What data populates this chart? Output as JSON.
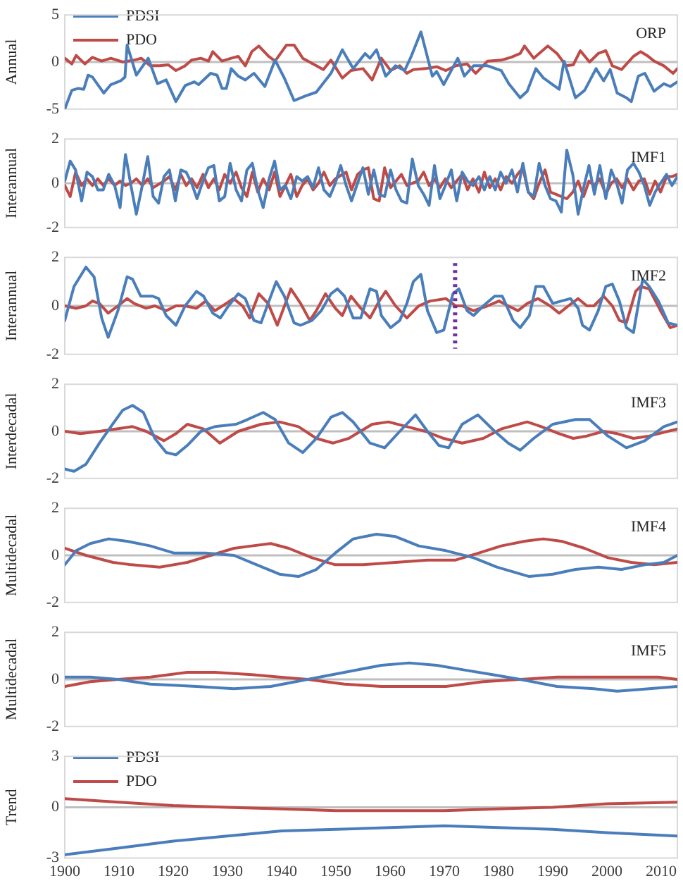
{
  "chart_data": [
    {
      "type": "line",
      "ylabel": "Annual",
      "annotations": [
        "ORP"
      ],
      "xlim": [
        1900,
        2013
      ],
      "xticks": [
        1900,
        1910,
        1920,
        1930,
        1940,
        1950,
        1960,
        1970,
        1980,
        1990,
        2000,
        2010
      ],
      "ylim": [
        -5,
        5
      ],
      "yticks": [
        -5,
        0,
        5
      ],
      "tick_labels": "y",
      "legend": "top left",
      "ref_lines": [
        {
          "axis": "y",
          "value": 0,
          "color": "#bfbfbf"
        }
      ],
      "series": [
        {
          "name": "PDSI",
          "color": "#4a7ebb",
          "x": [
            1900,
            1901.3,
            1902.5,
            1903.5,
            1904.3,
            1905.1,
            1907.2,
            1908.5,
            1910.3,
            1911.1,
            1911.5,
            1913.2,
            1915.4,
            1917.1,
            1917.9,
            1918.7,
            1920.5,
            1922.2,
            1923.9,
            1924.7,
            1926.9,
            1928.1,
            1929,
            1929.8,
            1930.7,
            1932,
            1933.3,
            1934.9,
            1936.9,
            1938.8,
            1940.5,
            1942.3,
            1944.4,
            1946.4,
            1949.1,
            1951.2,
            1953.2,
            1955.4,
            1956.3,
            1957.5,
            1959.2,
            1961,
            1962.7,
            1963.9,
            1965.7,
            1967.8,
            1968.6,
            1969.9,
            1972.5,
            1973.7,
            1975.4,
            1978,
            1980.5,
            1981.9,
            1984,
            1985.3,
            1986.9,
            1988.3,
            1990,
            1991.2,
            1992.1,
            1994.2,
            1995.9,
            1998,
            1999.4,
            2000.6,
            2001.9,
            2003.6,
            2004.5,
            2005.8,
            2007,
            2008.7,
            2010.5,
            2011.7,
            2013
          ],
          "values": [
            -5,
            -3,
            -2.8,
            -2.9,
            -1.4,
            -1.6,
            -3.3,
            -2.4,
            -2,
            -1.6,
            1.8,
            -1.4,
            0.4,
            -2.3,
            -2.1,
            -1.9,
            -4.2,
            -2.5,
            -2.1,
            -2.4,
            -1.2,
            -1.4,
            -2.8,
            -2.8,
            -0.7,
            -1.5,
            -1.9,
            -1.2,
            -2.6,
            0.2,
            -1.7,
            -4.1,
            -3.6,
            -3.2,
            -1.2,
            1.3,
            -0.7,
            0.9,
            0.4,
            1.3,
            -1.5,
            -0.4,
            -0.9,
            0.6,
            3.2,
            -1.5,
            -1,
            -2.4,
            0.4,
            -1.5,
            -0.4,
            -0.4,
            -0.9,
            -2.3,
            -3.8,
            -3.1,
            -0.7,
            -1.7,
            -2.4,
            -2.9,
            0.1,
            -3.8,
            -3,
            -0.7,
            -2,
            -0.8,
            -3.3,
            -3.8,
            -4.2,
            -1.5,
            -1.2,
            -3.1,
            -2.3,
            -2.6,
            -2.1
          ]
        },
        {
          "name": "PDO",
          "color": "#be4b48",
          "x": [
            1900,
            1901.3,
            1902.1,
            1903.7,
            1905.1,
            1906.8,
            1908.5,
            1910.7,
            1912.8,
            1914.1,
            1915.8,
            1917.5,
            1919.1,
            1920.5,
            1922.2,
            1923.4,
            1925.1,
            1926.5,
            1927.3,
            1929,
            1930.7,
            1932,
            1933.3,
            1934.5,
            1935.8,
            1937.6,
            1938.8,
            1940.9,
            1942.3,
            1943.9,
            1946.4,
            1947.7,
            1949.1,
            1951.2,
            1952.8,
            1955,
            1956.7,
            1958.4,
            1960.1,
            1961.8,
            1963.1,
            1964.3,
            1966.5,
            1968.6,
            1970.3,
            1972.1,
            1974.2,
            1975.8,
            1978,
            1980.5,
            1982.3,
            1984,
            1984.8,
            1986.5,
            1989.1,
            1990.8,
            1992.5,
            1993.8,
            1995.1,
            1996.8,
            1998.4,
            1999.8,
            2001,
            2002.7,
            2004.9,
            2006.2,
            2007.4,
            2008.7,
            2010.5,
            2012.2,
            2013
          ],
          "values": [
            0.4,
            -0.2,
            0.7,
            -0.2,
            0.5,
            0.1,
            0.4,
            0,
            0.2,
            0.4,
            -0.4,
            -0.4,
            -0.3,
            -0.9,
            -0.4,
            0.2,
            0.4,
            0.1,
            1.1,
            0.1,
            0.4,
            0.6,
            -0.4,
            1.1,
            1.7,
            0.6,
            0.1,
            1.8,
            1.8,
            0.4,
            -0.4,
            -0.8,
            0.2,
            -1.7,
            -0.9,
            -0.7,
            -1.9,
            0.4,
            -0.9,
            -0.4,
            -1.2,
            -0.8,
            -0.7,
            -0.5,
            -0.9,
            -0.4,
            -0.2,
            -1.2,
            0.1,
            0.2,
            0.5,
            0.9,
            1.7,
            0.4,
            1.7,
            0.9,
            -0.4,
            -0.3,
            1.2,
            0,
            0.9,
            1.2,
            -0.4,
            -0.8,
            0.6,
            1.1,
            0.7,
            0.1,
            -0.4,
            -1.2,
            -0.7
          ]
        }
      ]
    },
    {
      "type": "line",
      "ylabel": "Interannual",
      "annotations": [
        "IMF1"
      ],
      "xlim": [
        1900,
        2013
      ],
      "xticks": [
        1900,
        1910,
        1920,
        1930,
        1940,
        1950,
        1960,
        1970,
        1980,
        1990,
        2000,
        2010
      ],
      "ylim": [
        -2,
        2
      ],
      "yticks": [
        -2,
        0,
        2
      ],
      "tick_labels": "y",
      "ref_lines": [
        {
          "axis": "y",
          "value": 0,
          "color": "#bfbfbf"
        }
      ],
      "x": [
        1900,
        1901,
        1902,
        1903.1,
        1904.1,
        1905.1,
        1906.1,
        1907.1,
        1908.1,
        1909.2,
        1910.2,
        1911.2,
        1912.2,
        1913.2,
        1914.3,
        1915.3,
        1916.3,
        1917.3,
        1918.3,
        1919.3,
        1920.4,
        1921.4,
        1922.4,
        1923.4,
        1924.4,
        1925.5,
        1926.5,
        1927.5,
        1928.5,
        1929.5,
        1930.5,
        1931.6,
        1932.6,
        1933.6,
        1934.6,
        1935.6,
        1936.6,
        1937.7,
        1938.7,
        1939.7,
        1940.7,
        1941.7,
        1942.8,
        1943.8,
        1944.8,
        1945.8,
        1946.8,
        1947.8,
        1948.9,
        1949.9,
        1950.9,
        1951.9,
        1952.9,
        1954,
        1955,
        1956,
        1957,
        1958,
        1959,
        1960.1,
        1961.1,
        1962.1,
        1963.1,
        1964.1,
        1965.2,
        1966.2,
        1967.2,
        1968.2,
        1969.2,
        1970.2,
        1971.3,
        1972.3,
        1973.3,
        1974.3,
        1975.3,
        1976.4,
        1977.4,
        1978.4,
        1979.4,
        1980.4,
        1981.4,
        1982.5,
        1983.5,
        1984.5,
        1985.5,
        1986.5,
        1987.5,
        1988.6,
        1989.6,
        1990.6,
        1991.6,
        1992.6,
        1993.7,
        1994.7,
        1995.7,
        1996.7,
        1997.7,
        1998.7,
        1999.8,
        2000.8,
        2001.8,
        2002.8,
        2003.8,
        2004.9,
        2005.9,
        2006.9,
        2007.9,
        2008.9,
        2009.9,
        2011,
        2012,
        2013
      ],
      "series": [
        {
          "color": "#4a7ebb",
          "values": [
            0.1,
            1,
            0.6,
            -0.8,
            0.5,
            0.3,
            -0.3,
            -0.3,
            0.4,
            -0.1,
            -1.1,
            1.3,
            -0.1,
            -1.4,
            -0.1,
            1.2,
            -0.6,
            -0.9,
            0.3,
            0.6,
            -0.8,
            0.6,
            0.5,
            0,
            -0.7,
            0.1,
            0.7,
            0.8,
            -0.8,
            -0.6,
            0.9,
            -0.3,
            -0.8,
            0.6,
            0.9,
            -0.3,
            -1.1,
            0.2,
            1,
            -0.3,
            -0.1,
            -0.7,
            0.3,
            0.1,
            0.3,
            -0.2,
            0.7,
            -0.3,
            -0.6,
            0,
            0.8,
            -0.1,
            -0.8,
            0,
            0.7,
            -0.5,
            0.6,
            -0.5,
            -0.6,
            0.6,
            -0.3,
            -0.8,
            -0.9,
            1.1,
            -0.1,
            -0.5,
            -1,
            0.8,
            -0.7,
            -0.1,
            0.6,
            -0.8,
            0.5,
            0.1,
            -0.1,
            0.3,
            -0.3,
            0.3,
            -0.3,
            0.5,
            0,
            0.6,
            -0.4,
            0.9,
            -0.4,
            -0.6,
            0.9,
            -0.1,
            -0.7,
            -0.8,
            -1.3,
            1.5,
            0.4,
            -1.4,
            -0.2,
            0.8,
            -0.5,
            0.8,
            -0.7,
            0.6,
            0,
            -0.9,
            0.6,
            0.9,
            0.5,
            -0.1,
            -1,
            -0.4,
            0,
            0.4,
            -0.1,
            0.3
          ]
        },
        {
          "color": "#be4b48",
          "x": [
            1900,
            1901,
            1902,
            1903.1,
            1904.1,
            1905.1,
            1906.1,
            1907.1,
            1908.1,
            1909.2,
            1910.2,
            1911.2,
            1912.2,
            1913.2,
            1914.3,
            1915.3,
            1916.3,
            1918.3,
            1919.3,
            1920.4,
            1921.4,
            1922.4,
            1923.4,
            1924.4,
            1925.5,
            1926.5,
            1927.5,
            1928.5,
            1929.5,
            1930.5,
            1931.6,
            1932.6,
            1933.6,
            1934.6,
            1935.6,
            1936.6,
            1937.7,
            1938.7,
            1939.7,
            1941.7,
            1942.8,
            1943.8,
            1944.8,
            1945.8,
            1946.8,
            1947.8,
            1948.9,
            1949.9,
            1951.9,
            1952.9,
            1954,
            1955,
            1956,
            1957,
            1958,
            1959,
            1960.1,
            1961.1,
            1962.1,
            1963.1,
            1964.1,
            1965.2,
            1966.2,
            1967.2,
            1968.2,
            1969.2,
            1970.2,
            1971.3,
            1972.3,
            1973.3,
            1974.3,
            1975.3,
            1976.4,
            1977.4,
            1978.4,
            1979.4,
            1980.4,
            1981.4,
            1982.5,
            1983.5,
            1984.5,
            1985.5,
            1986.5,
            1987.5,
            1988.6,
            1989.6,
            1990.6,
            1991.6,
            1992.6,
            1993.7,
            1994.7,
            1995.7,
            1996.7,
            1997.7,
            1998.7,
            1999.8,
            2000.8,
            2001.8,
            2002.8,
            2003.8,
            2004.9,
            2005.9,
            2006.9,
            2007.9,
            2008.9,
            2009.9,
            2011,
            2012,
            2013
          ],
          "values": [
            -0.1,
            -0.6,
            0.5,
            -0.1,
            0.2,
            -0.1,
            0.2,
            -0.1,
            0.2,
            -0.1,
            0.1,
            -0.1,
            0,
            0.2,
            -0.1,
            0.2,
            -0.2,
            0.1,
            0.3,
            -0.3,
            0.4,
            -0.1,
            0.2,
            -0.2,
            0.4,
            -0.2,
            0.2,
            -0.3,
            0.4,
            0,
            0.5,
            -0.2,
            -0.6,
            0.5,
            -0.4,
            0.2,
            -0.3,
            0.5,
            -0.6,
            0.4,
            -0.6,
            -0.1,
            0.2,
            -0.3,
            0,
            0.5,
            -0.1,
            0.2,
            0.5,
            -0.3,
            0.4,
            0.6,
            0.7,
            -0.7,
            -0.8,
            0.7,
            -0.2,
            0.1,
            0.4,
            -0.1,
            0,
            0.1,
            0.5,
            -0.1,
            0.2,
            -0.2,
            0.2,
            -0.2,
            0.1,
            0.4,
            -0.3,
            0.2,
            -0.4,
            0.5,
            -0.2,
            0.2,
            -0.3,
            0.3,
            0,
            0.4,
            0.7,
            -0.4,
            -0.7,
            0,
            0.6,
            -0.4,
            -0.5,
            -0.6,
            -0.7,
            -0.4,
            0.1,
            -0.6,
            0.1,
            -0.1,
            0.2,
            -0.5,
            0,
            0.2,
            -0.2,
            0.2,
            -0.3,
            0.1,
            0.2,
            -0.5,
            0.1,
            -0.4,
            0.3,
            0.3,
            0.4
          ]
        }
      ]
    },
    {
      "type": "line",
      "ylabel": "Interannual",
      "annotations": [
        "IMF2"
      ],
      "xlim": [
        1900,
        2013
      ],
      "xticks": [
        1900,
        1910,
        1920,
        1930,
        1940,
        1950,
        1960,
        1970,
        1980,
        1990,
        2000,
        2010
      ],
      "ylim": [
        -2,
        2
      ],
      "yticks": [
        -2,
        0,
        2
      ],
      "tick_labels": "y",
      "ref_lines": [
        {
          "axis": "y",
          "value": 0,
          "color": "#bfbfbf"
        },
        {
          "axis": "x",
          "value": 1972,
          "color": "#7030a0",
          "line_style": "dotted"
        }
      ],
      "series": [
        {
          "color": "#4a7ebb",
          "x": [
            1900,
            1901.7,
            1903.9,
            1905.4,
            1906.8,
            1908,
            1909.8,
            1911.5,
            1912.5,
            1914,
            1916.2,
            1917.3,
            1918.7,
            1920.5,
            1922.2,
            1924.3,
            1925.6,
            1927.3,
            1928.7,
            1930.2,
            1932,
            1933.3,
            1934.9,
            1936.2,
            1937.5,
            1939,
            1940.5,
            1942.3,
            1943.5,
            1945.6,
            1947.3,
            1949.1,
            1950.3,
            1951.6,
            1953.2,
            1954.6,
            1956.3,
            1957.5,
            1958.4,
            1960.1,
            1961.8,
            1963.1,
            1964.3,
            1965.7,
            1966.9,
            1968.6,
            1969.9,
            1971.6,
            1972.7,
            1974.2,
            1975.4,
            1977.2,
            1979.3,
            1980.7,
            1982.7,
            1984,
            1985.7,
            1986.9,
            1988.3,
            1990,
            1991.6,
            1993.3,
            1994.7,
            1995.5,
            1996.8,
            1998.4,
            1999.8,
            2001,
            2002.3,
            2003.6,
            2004.9,
            2006.6,
            2007.8,
            2009.5,
            2011.3,
            2013
          ],
          "values": [
            -0.6,
            0.8,
            1.6,
            1.2,
            -0.5,
            -1.3,
            -0.2,
            1.2,
            1.1,
            0.4,
            0.4,
            0.3,
            -0.4,
            -0.8,
            0,
            0.6,
            0.4,
            -0.3,
            -0.5,
            0,
            0.5,
            0.3,
            -0.6,
            -0.7,
            0.1,
            1,
            0.4,
            -0.7,
            -0.8,
            -0.6,
            -0.2,
            0.5,
            0.7,
            0.4,
            -0.5,
            -0.5,
            0.7,
            0.6,
            -0.4,
            -0.9,
            -0.6,
            0.1,
            1,
            1.3,
            -0.2,
            -1.1,
            -1,
            0.5,
            0.7,
            -0.2,
            -0.4,
            0,
            0.4,
            0.4,
            -0.6,
            -0.9,
            -0.4,
            0.8,
            0.8,
            0.1,
            0.2,
            0.3,
            -0.1,
            -0.8,
            -1,
            -0.2,
            0.8,
            0.9,
            0.2,
            -0.9,
            -1.1,
            1.1,
            0.8,
            0.2,
            -0.7,
            -0.8
          ]
        },
        {
          "color": "#be4b48",
          "x": [
            1900,
            1902.1,
            1903.9,
            1905.1,
            1906.4,
            1908,
            1909.8,
            1911.5,
            1912.8,
            1915,
            1916.6,
            1918.7,
            1920.5,
            1922.2,
            1924.3,
            1926,
            1927.7,
            1929.8,
            1931.1,
            1932.8,
            1934.1,
            1935.8,
            1937.5,
            1939.2,
            1941.7,
            1943.5,
            1945.2,
            1946.4,
            1948.1,
            1949.9,
            1951.2,
            1952.8,
            1954.6,
            1956.3,
            1958,
            1959.2,
            1961,
            1963.1,
            1965.3,
            1967.4,
            1970.3,
            1972.1,
            1973.3,
            1975.4,
            1978,
            1980.1,
            1981.8,
            1983.6,
            1985.3,
            1987.3,
            1989.5,
            1991.2,
            1992.9,
            1994.7,
            1996.3,
            1997.6,
            1999.4,
            2001,
            2002.3,
            2003.6,
            2005.3,
            2006.2,
            2007.8,
            2009.9,
            2011.7,
            2013
          ],
          "values": [
            0,
            -0.1,
            0,
            0.2,
            0.1,
            -0.3,
            0,
            0.3,
            0.1,
            -0.1,
            0,
            -0.2,
            0,
            0,
            -0.1,
            0.2,
            -0.2,
            0.1,
            0.3,
            0,
            -0.5,
            0.5,
            0.1,
            -0.8,
            0.7,
            0.1,
            -0.6,
            -0.2,
            0.5,
            -0.1,
            -0.4,
            0.4,
            -0.1,
            -0.5,
            0.2,
            0.6,
            0,
            -0.5,
            0,
            0.2,
            0.3,
            0,
            0,
            -0.2,
            0,
            0.2,
            0,
            -0.2,
            0.1,
            0.3,
            0,
            -0.3,
            0,
            0.3,
            0,
            0,
            0.4,
            0,
            -0.6,
            -0.7,
            0.6,
            0.8,
            0.7,
            -0.2,
            -0.9,
            -0.8
          ]
        }
      ]
    },
    {
      "type": "line",
      "ylabel": "Interdecadal",
      "annotations": [
        "IMF3"
      ],
      "xlim": [
        1900,
        2013
      ],
      "xticks": [
        1900,
        1910,
        1920,
        1930,
        1940,
        1950,
        1960,
        1970,
        1980,
        1990,
        2000,
        2010
      ],
      "ylim": [
        -2,
        2
      ],
      "yticks": [
        -2,
        0,
        2
      ],
      "tick_labels": "y",
      "ref_lines": [
        {
          "axis": "y",
          "value": 0,
          "color": "#bfbfbf"
        }
      ],
      "series": [
        {
          "color": "#4a7ebb",
          "x": [
            1900,
            1901.7,
            1903.9,
            1906.4,
            1908.5,
            1910.7,
            1912.5,
            1914.5,
            1916.6,
            1918.7,
            1920.5,
            1922.6,
            1925.1,
            1927.7,
            1931.6,
            1933.7,
            1936.6,
            1938.8,
            1941.3,
            1943.9,
            1946.4,
            1949.1,
            1951.2,
            1953.2,
            1956.3,
            1959,
            1961.8,
            1964.7,
            1966.9,
            1969,
            1970.8,
            1973.3,
            1976.2,
            1979.3,
            1981.8,
            1984,
            1986.5,
            1990,
            1994.2,
            1996.8,
            2000.2,
            2003.6,
            2007,
            2010.5,
            2013
          ],
          "values": [
            -1.6,
            -1.7,
            -1.4,
            -0.5,
            0.2,
            0.9,
            1.1,
            0.8,
            -0.3,
            -0.9,
            -1,
            -0.6,
            0,
            0.2,
            0.3,
            0.5,
            0.8,
            0.5,
            -0.5,
            -0.9,
            -0.3,
            0.6,
            0.8,
            0.4,
            -0.5,
            -0.7,
            0,
            0.7,
            0,
            -0.6,
            -0.7,
            0.3,
            0.7,
            0,
            -0.5,
            -0.8,
            -0.3,
            0.3,
            0.5,
            0.5,
            -0.2,
            -0.7,
            -0.4,
            0.2,
            0.4
          ]
        },
        {
          "color": "#be4b48",
          "x": [
            1900,
            1902.9,
            1906.4,
            1909.4,
            1912.5,
            1915,
            1918.3,
            1920.5,
            1922.6,
            1925.6,
            1928.6,
            1932,
            1936.2,
            1939.6,
            1943.1,
            1946.4,
            1949.5,
            1952.4,
            1956.7,
            1959.7,
            1963.1,
            1966.5,
            1969.9,
            1973.3,
            1977.2,
            1980.5,
            1985.3,
            1987.9,
            1991.2,
            1993.8,
            1996.3,
            1999.4,
            2001.9,
            2004.9,
            2007.8,
            2013
          ],
          "values": [
            0,
            -0.1,
            0,
            0.1,
            0.2,
            0,
            -0.4,
            -0.1,
            0.3,
            0.1,
            -0.5,
            0,
            0.3,
            0.4,
            0.2,
            -0.3,
            -0.5,
            -0.3,
            0.3,
            0.4,
            0.2,
            0,
            -0.3,
            -0.5,
            -0.3,
            0.1,
            0.4,
            0.2,
            -0.1,
            -0.3,
            -0.2,
            0,
            -0.1,
            -0.3,
            -0.2,
            0.1
          ]
        }
      ]
    },
    {
      "type": "line",
      "ylabel": "Multidecadal",
      "annotations": [
        "IMF4"
      ],
      "xlim": [
        1900,
        2013
      ],
      "xticks": [
        1900,
        1910,
        1920,
        1930,
        1940,
        1950,
        1960,
        1970,
        1980,
        1990,
        2000,
        2010
      ],
      "ylim": [
        -2,
        2
      ],
      "yticks": [
        -2,
        0,
        2
      ],
      "tick_labels": "y",
      "ref_lines": [
        {
          "axis": "y",
          "value": 0,
          "color": "#bfbfbf"
        }
      ],
      "series": [
        {
          "color": "#4a7ebb",
          "x": [
            1900,
            1902.1,
            1904.7,
            1908.1,
            1911.5,
            1915.8,
            1920.1,
            1926,
            1931.2,
            1935.4,
            1939.6,
            1943.1,
            1946.4,
            1949.9,
            1953.2,
            1957.5,
            1961,
            1965.3,
            1970.3,
            1975.4,
            1979.7,
            1985.7,
            1990,
            1994.2,
            1998.4,
            2002.7,
            2007,
            2010.5,
            2013
          ],
          "values": [
            -0.4,
            0.2,
            0.5,
            0.7,
            0.6,
            0.4,
            0.1,
            0.1,
            0,
            -0.4,
            -0.8,
            -0.9,
            -0.6,
            0.1,
            0.7,
            0.9,
            0.8,
            0.4,
            0.2,
            -0.1,
            -0.5,
            -0.9,
            -0.8,
            -0.6,
            -0.5,
            -0.6,
            -0.4,
            -0.3,
            0
          ]
        },
        {
          "color": "#be4b48",
          "x": [
            1900,
            1903.9,
            1908.9,
            1912.3,
            1917.5,
            1922.6,
            1926.9,
            1931.2,
            1934.5,
            1938,
            1941.3,
            1945.6,
            1949.9,
            1955,
            1961,
            1966.9,
            1972.1,
            1976.4,
            1980.5,
            1984.8,
            1988.3,
            1991.6,
            1995.9,
            2000.2,
            2004.5,
            2008.7,
            2013
          ],
          "values": [
            0.3,
            0,
            -0.3,
            -0.4,
            -0.5,
            -0.3,
            0,
            0.3,
            0.4,
            0.5,
            0.3,
            -0.1,
            -0.4,
            -0.4,
            -0.3,
            -0.2,
            -0.2,
            0.1,
            0.4,
            0.6,
            0.7,
            0.6,
            0.3,
            -0.1,
            -0.3,
            -0.4,
            -0.3
          ]
        }
      ]
    },
    {
      "type": "line",
      "ylabel": "Multidecadal",
      "annotations": [
        "IMF5"
      ],
      "xlim": [
        1900,
        2013
      ],
      "xticks": [
        1900,
        1910,
        1920,
        1930,
        1940,
        1950,
        1960,
        1970,
        1980,
        1990,
        2000,
        2010
      ],
      "ylim": [
        -2,
        2
      ],
      "yticks": [
        -2,
        0,
        2
      ],
      "tick_labels": "y",
      "ref_lines": [
        {
          "axis": "y",
          "value": 0,
          "color": "#bfbfbf"
        }
      ],
      "series": [
        {
          "color": "#4a7ebb",
          "x": [
            1900,
            1904.7,
            1909.8,
            1915.8,
            1924.3,
            1931.2,
            1938,
            1944.8,
            1951.6,
            1958.4,
            1963.5,
            1968.6,
            1973.7,
            1978.9,
            1984,
            1990.8,
            1997.6,
            2001.9,
            2007.8,
            2013
          ],
          "values": [
            0.1,
            0.1,
            0,
            -0.2,
            -0.3,
            -0.4,
            -0.3,
            0,
            0.3,
            0.6,
            0.7,
            0.6,
            0.4,
            0.2,
            0,
            -0.3,
            -0.4,
            -0.5,
            -0.4,
            -0.3
          ]
        },
        {
          "color": "#be4b48",
          "x": [
            1900,
            1904.7,
            1909.8,
            1915.8,
            1922.6,
            1927.7,
            1934.5,
            1939.6,
            1944.8,
            1951.6,
            1958.4,
            1963.5,
            1970.3,
            1977.2,
            1984,
            1990.8,
            1997.6,
            2003.6,
            2009.5,
            2013
          ],
          "values": [
            -0.3,
            -0.1,
            0,
            0.1,
            0.3,
            0.3,
            0.2,
            0.1,
            0,
            -0.2,
            -0.3,
            -0.3,
            -0.3,
            -0.1,
            0,
            0.1,
            0.1,
            0.1,
            0.1,
            0
          ]
        }
      ]
    },
    {
      "type": "line",
      "ylabel": "Trend",
      "xlim": [
        1900,
        2013
      ],
      "xticks": [
        1900,
        1910,
        1920,
        1930,
        1940,
        1950,
        1960,
        1970,
        1980,
        1990,
        2000,
        2010
      ],
      "ylim": [
        -3,
        3
      ],
      "yticks": [
        -3,
        0,
        3
      ],
      "legend": "top left",
      "ref_lines": [
        {
          "axis": "y",
          "value": 0,
          "color": "#bfbfbf"
        }
      ],
      "x": [
        1900,
        1910,
        1920,
        1930,
        1940,
        1950,
        1960,
        1970,
        1980,
        1990,
        2000,
        2013
      ],
      "series": [
        {
          "name": "PDSI",
          "color": "#4a7ebb",
          "values": [
            -2.8,
            -2.4,
            -2,
            -1.7,
            -1.4,
            -1.3,
            -1.2,
            -1.1,
            -1.2,
            -1.3,
            -1.5,
            -1.7
          ]
        },
        {
          "name": "PDO",
          "color": "#be4b48",
          "values": [
            0.5,
            0.3,
            0.1,
            0,
            -0.1,
            -0.2,
            -0.2,
            -0.2,
            -0.1,
            0,
            0.2,
            0.3
          ]
        }
      ]
    }
  ]
}
